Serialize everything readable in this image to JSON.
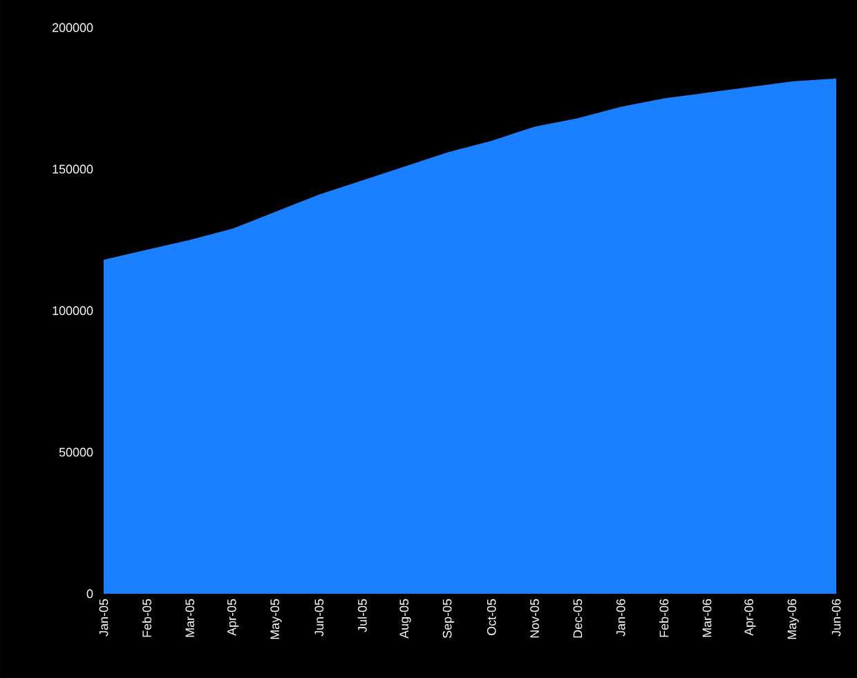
{
  "chart_data": {
    "type": "area",
    "categories": [
      "Jan-05",
      "Feb-05",
      "Mar-05",
      "Apr-05",
      "May-05",
      "Jun-05",
      "Jul-05",
      "Aug-05",
      "Sep-05",
      "Oct-05",
      "Nov-05",
      "Dec-05",
      "Jan-06",
      "Feb-06",
      "Mar-06",
      "Apr-06",
      "May-06",
      "Jun-06"
    ],
    "values": [
      118000,
      121500,
      125000,
      129000,
      135000,
      141000,
      146000,
      151000,
      156000,
      160000,
      165000,
      168000,
      172000,
      175000,
      177000,
      179000,
      181000,
      182000
    ],
    "color": "#1a80ff",
    "ylim": [
      0,
      200000
    ],
    "yticks": [
      0,
      50000,
      100000,
      150000,
      200000
    ],
    "grid": false
  }
}
